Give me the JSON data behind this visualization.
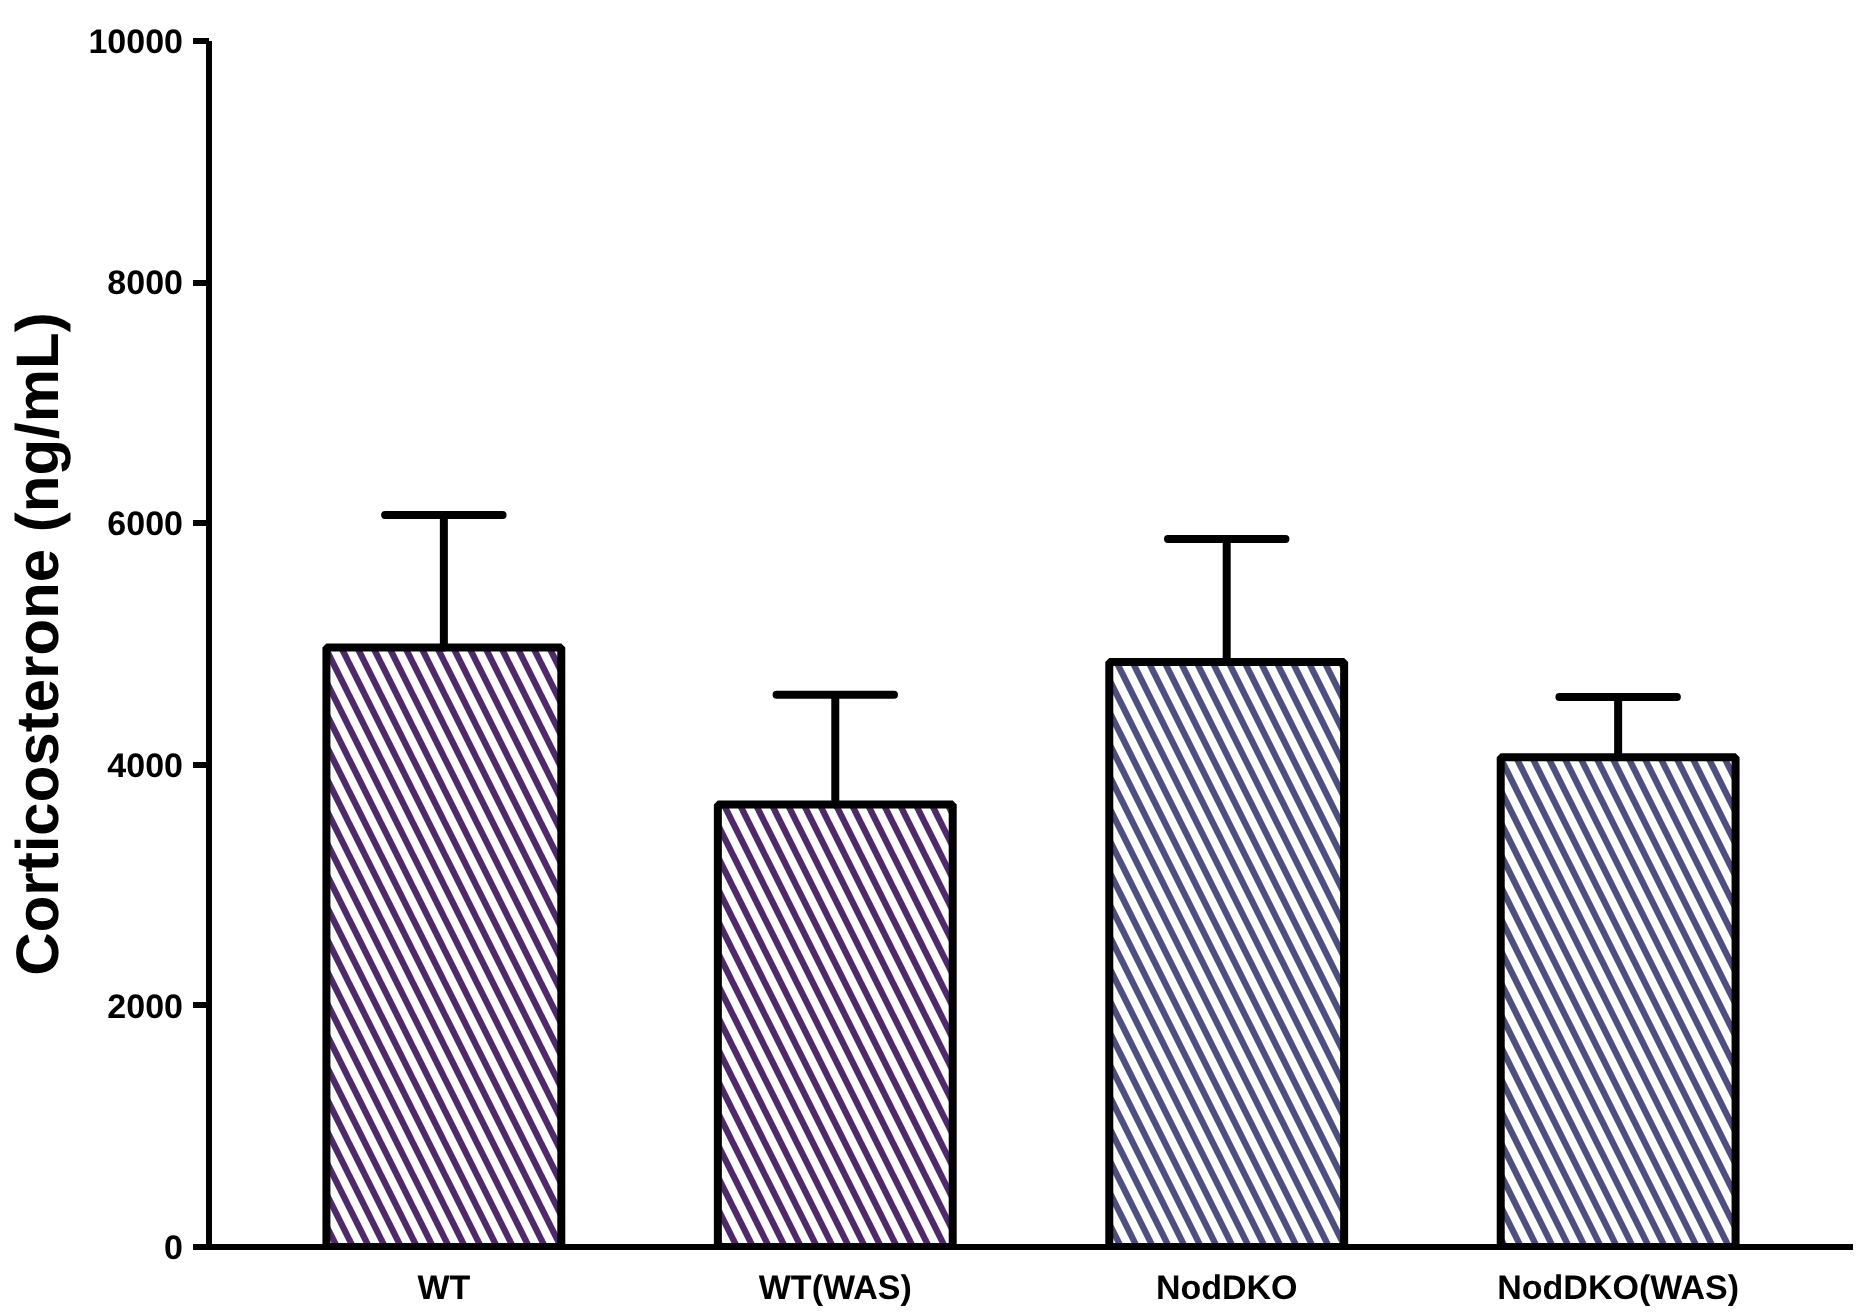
{
  "chart_data": {
    "type": "bar",
    "ylabel": "Corticosterone (ng/mL)",
    "categories": [
      "WT",
      "WT(WAS)",
      "NodDKO",
      "NodDKO(WAS)"
    ],
    "values": [
      4970,
      3670,
      4850,
      4060
    ],
    "errors": [
      [
        4970,
        6070
      ],
      [
        3670,
        4580
      ],
      [
        4850,
        5870
      ],
      [
        4060,
        4560
      ]
    ],
    "colors": [
      "#4f2a6b",
      "#4f2a6b",
      "#4e4f7e",
      "#4e4f7e"
    ],
    "ylim": [
      0,
      10000
    ],
    "yticks": [
      0,
      2000,
      4000,
      6000,
      8000,
      10000
    ],
    "grid": false
  }
}
